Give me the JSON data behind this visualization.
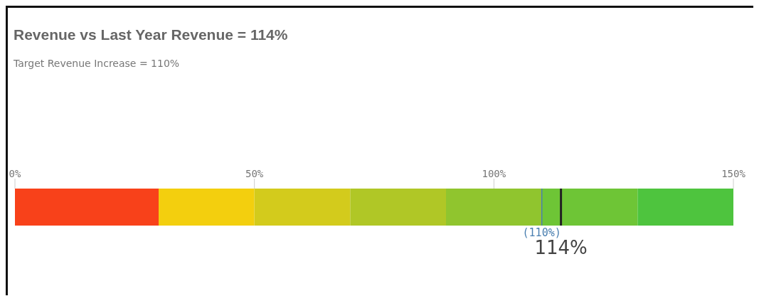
{
  "chart_data": {
    "type": "bar",
    "orientation": "horizontal",
    "stacked": true,
    "title": "Revenue vs Last Year Revenue = 114%",
    "subtitle": "Target Revenue Increase = 110%",
    "categories": [
      null
    ],
    "series": [
      {
        "color": "#f8411a",
        "values": [
          30
        ]
      },
      {
        "color": "#f3cf0e",
        "values": [
          20
        ]
      },
      {
        "color": "#d3cb1c",
        "values": [
          20
        ]
      },
      {
        "color": "#b0c726",
        "values": [
          20
        ]
      },
      {
        "color": "#90c52e",
        "values": [
          20
        ]
      },
      {
        "color": "#6ec536",
        "values": [
          20
        ]
      },
      {
        "color": "#4ec43e",
        "values": [
          20
        ]
      }
    ],
    "xlim": [
      0,
      150
    ],
    "xticks": [
      {
        "value": 0,
        "label": "0%"
      },
      {
        "value": 50,
        "label": "50%"
      },
      {
        "value": 100,
        "label": "100%"
      },
      {
        "value": 150,
        "label": "150%"
      }
    ],
    "ref_lines": [
      {
        "axis": "x",
        "value": 110,
        "label": "(110%)",
        "color": "#4a7fb0"
      },
      {
        "axis": "x",
        "value": 114,
        "label": "114%",
        "color": "#222222"
      }
    ]
  }
}
